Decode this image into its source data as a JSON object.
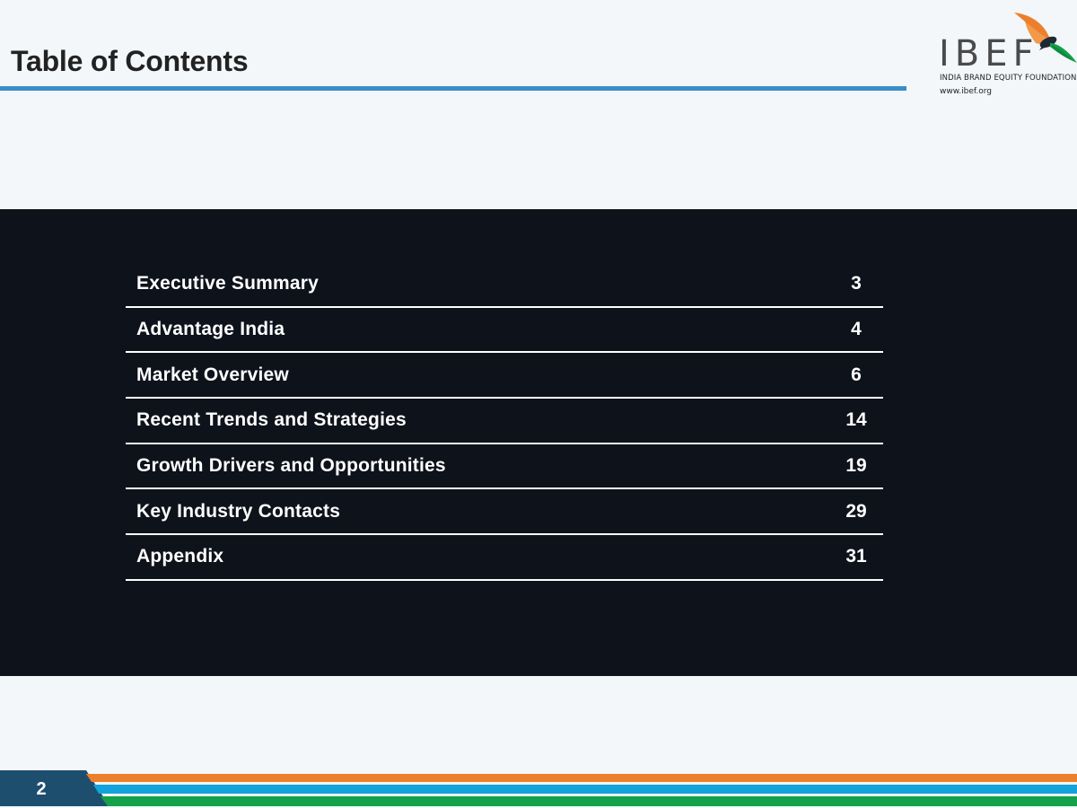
{
  "header": {
    "title": "Table of Contents"
  },
  "logo": {
    "wordmark": "IBEF",
    "subtitle": "INDIA BRAND EQUITY FOUNDATION",
    "url": "www.ibef.org"
  },
  "toc": {
    "items": [
      {
        "label": "Executive Summary",
        "page": "3"
      },
      {
        "label": "Advantage India",
        "page": "4"
      },
      {
        "label": "Market Overview",
        "page": "6"
      },
      {
        "label": "Recent Trends and Strategies",
        "page": "14"
      },
      {
        "label": "Growth Drivers and Opportunities",
        "page": "19"
      },
      {
        "label": "Key Industry Contacts",
        "page": "29"
      },
      {
        "label": "Appendix",
        "page": "31"
      }
    ]
  },
  "footer": {
    "page_number": "2"
  },
  "colors": {
    "accent_blue": "#3a8dc9",
    "dark_panel": "#0d121b",
    "page_tab": "#1d4e6e",
    "stripe_orange": "#ec7f2b",
    "stripe_blue": "#12a3dc",
    "stripe_green": "#13a14a"
  }
}
